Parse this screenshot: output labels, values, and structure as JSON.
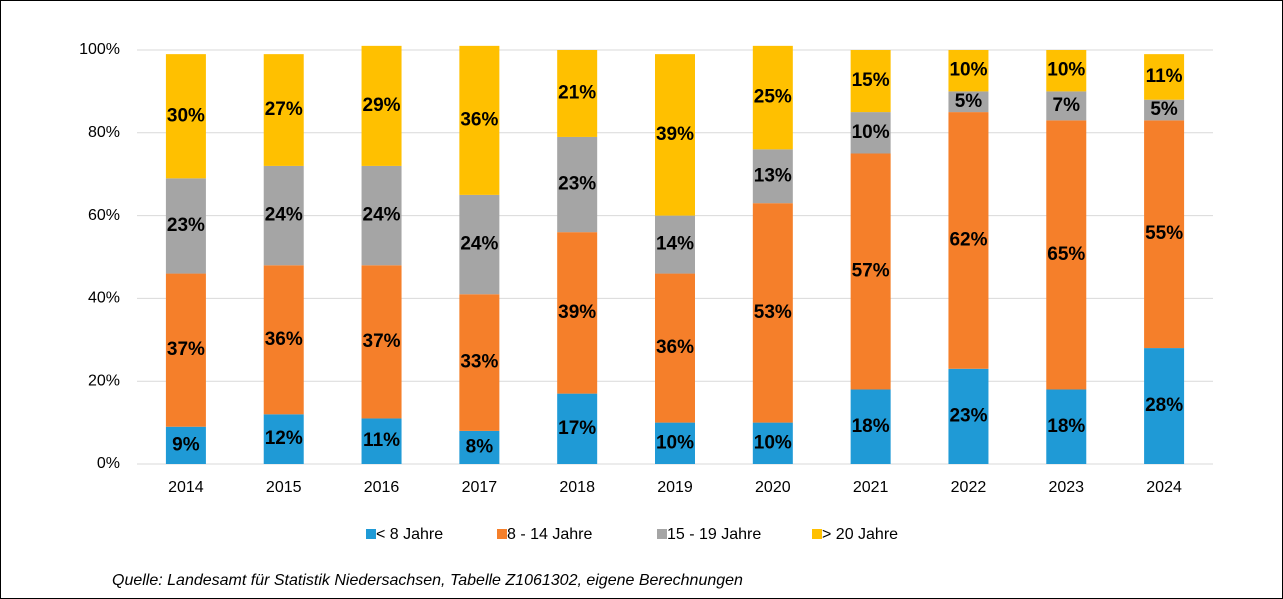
{
  "chart_data": {
    "type": "stacked_bar",
    "categories": [
      "2014",
      "2015",
      "2016",
      "2017",
      "2018",
      "2019",
      "2020",
      "2021",
      "2022",
      "2023",
      "2024"
    ],
    "series": [
      {
        "name": "< 8 Jahre",
        "color": "#1f9ad6",
        "values": [
          9,
          12,
          11,
          8,
          17,
          10,
          10,
          18,
          23,
          18,
          28
        ],
        "value_labels": [
          "9%",
          "12%",
          "11%",
          "8%",
          "17%",
          "10%",
          "10%",
          "18%",
          "23%",
          "18%",
          "28%"
        ]
      },
      {
        "name": "8 - 14 Jahre",
        "color": "#f57f2a",
        "values": [
          37,
          36,
          37,
          33,
          39,
          36,
          53,
          57,
          62,
          65,
          55
        ],
        "value_labels": [
          "37%",
          "36%",
          "37%",
          "33%",
          "39%",
          "36%",
          "53%",
          "57%",
          "62%",
          "65%",
          "55%"
        ]
      },
      {
        "name": "15 - 19 Jahre",
        "color": "#a5a5a5",
        "values": [
          23,
          24,
          24,
          24,
          23,
          14,
          13,
          10,
          5,
          7,
          5
        ],
        "value_labels": [
          "23%",
          "24%",
          "24%",
          "24%",
          "23%",
          "14%",
          "13%",
          "10%",
          "5%",
          "7%",
          "5%"
        ]
      },
      {
        "name": "> 20 Jahre",
        "color": "#ffc000",
        "values": [
          30,
          27,
          29,
          36,
          21,
          39,
          25,
          15,
          10,
          10,
          11
        ],
        "value_labels": [
          "30%",
          "27%",
          "29%",
          "36%",
          "21%",
          "39%",
          "25%",
          "15%",
          "10%",
          "10%",
          "11%"
        ]
      }
    ],
    "ylim": [
      0,
      100
    ],
    "yticks": [
      {
        "value": 0,
        "label": "0%"
      },
      {
        "value": 20,
        "label": "20%"
      },
      {
        "value": 40,
        "label": "40%"
      },
      {
        "value": 60,
        "label": "60%"
      },
      {
        "value": 80,
        "label": "80%"
      },
      {
        "value": 100,
        "label": "100%"
      }
    ],
    "grid": true,
    "legend": "bottom",
    "note": "Quelle: Landesamt für Statistik Niedersachsen, Tabelle Z1061302, eigene Berechnungen"
  }
}
